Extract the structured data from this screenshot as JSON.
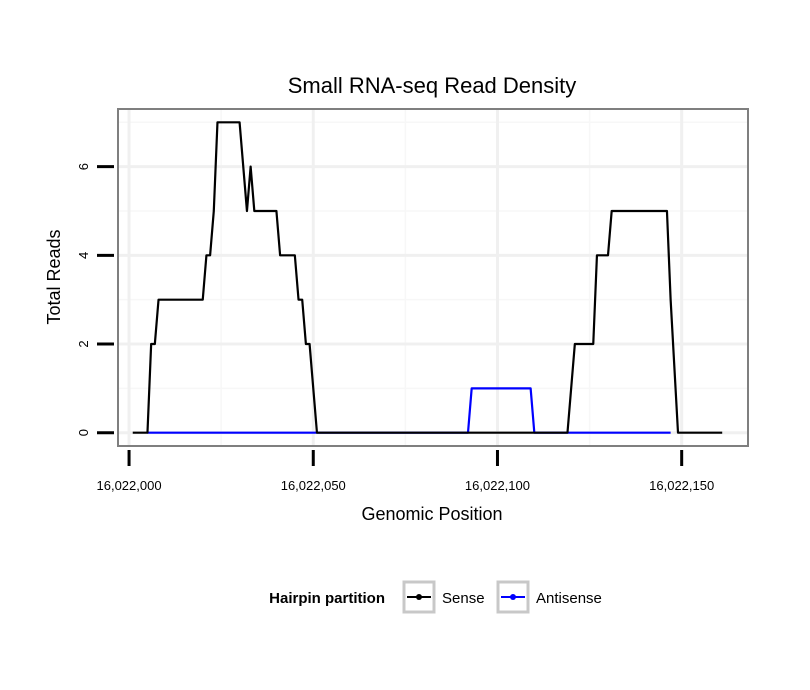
{
  "chart_data": {
    "type": "line",
    "title": "Small RNA-seq Read Density",
    "xlabel": "Genomic Position",
    "ylabel": "Total Reads",
    "xlim": [
      16021997,
      16022168
    ],
    "ylim": [
      -0.3,
      7.3
    ],
    "xticks": [
      16022000,
      16022050,
      16022100,
      16022150
    ],
    "xtick_labels": [
      "16,022,000",
      "16,022,050",
      "16,022,100",
      "16,022,150"
    ],
    "yticks": [
      0,
      2,
      4,
      6
    ],
    "ytick_labels": [
      "0",
      "2",
      "4",
      "6"
    ],
    "grid": true,
    "legend": {
      "title": "Hairpin partition",
      "placement": "bottom",
      "entries": [
        "Sense",
        "Antisense"
      ]
    },
    "colors": {
      "Sense": "#000000",
      "Antisense": "#0000ff"
    },
    "series": [
      {
        "name": "Sense",
        "x": [
          16022001,
          16022005,
          16022006,
          16022007,
          16022008,
          16022020,
          16022021,
          16022022,
          16022023,
          16022024,
          16022025,
          16022026,
          16022030,
          16022031,
          16022032,
          16022033,
          16022034,
          16022040,
          16022041,
          16022045,
          16022046,
          16022047,
          16022048,
          16022049,
          16022051,
          16022119,
          16022121,
          16022126,
          16022127,
          16022130,
          16022131,
          16022132,
          16022146,
          16022147,
          16022149,
          16022161
        ],
        "y": [
          0,
          0,
          2,
          2,
          3,
          3,
          4,
          4,
          5,
          7,
          7,
          7,
          7,
          6,
          5,
          6,
          5,
          5,
          4,
          4,
          3,
          3,
          2,
          2,
          0,
          0,
          2,
          2,
          4,
          4,
          5,
          5,
          5,
          3,
          0,
          0
        ]
      },
      {
        "name": "Antisense",
        "x": [
          16022005,
          16022092,
          16022093,
          16022109,
          16022110,
          16022119,
          16022147
        ],
        "y": [
          0,
          0,
          1,
          1,
          0,
          0,
          0
        ]
      }
    ]
  }
}
